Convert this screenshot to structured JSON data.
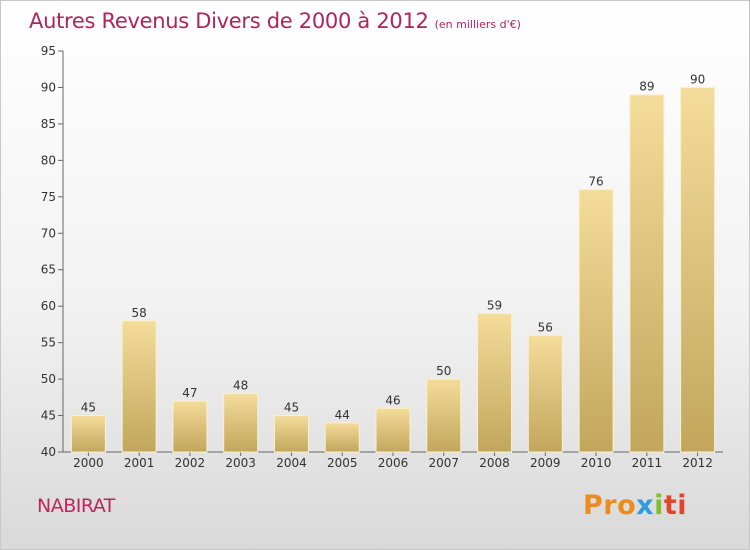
{
  "chart_data": {
    "type": "bar",
    "title": "Autres Revenus Divers de 2000 à 2012",
    "subtitle": "(en milliers d'€)",
    "categories": [
      "2000",
      "2001",
      "2002",
      "2003",
      "2004",
      "2005",
      "2006",
      "2007",
      "2008",
      "2009",
      "2010",
      "2011",
      "2012"
    ],
    "values": [
      45,
      58,
      47,
      48,
      45,
      44,
      46,
      50,
      59,
      56,
      76,
      89,
      90
    ],
    "ylim": [
      40,
      95
    ],
    "yticks": [
      40,
      45,
      50,
      55,
      60,
      65,
      70,
      75,
      80,
      85,
      90,
      95
    ],
    "grid": false,
    "bar_color": "#e6c880"
  },
  "footer": {
    "commune": "NABIRAT",
    "logo": [
      "Pro",
      "x",
      "i",
      "ti"
    ]
  }
}
